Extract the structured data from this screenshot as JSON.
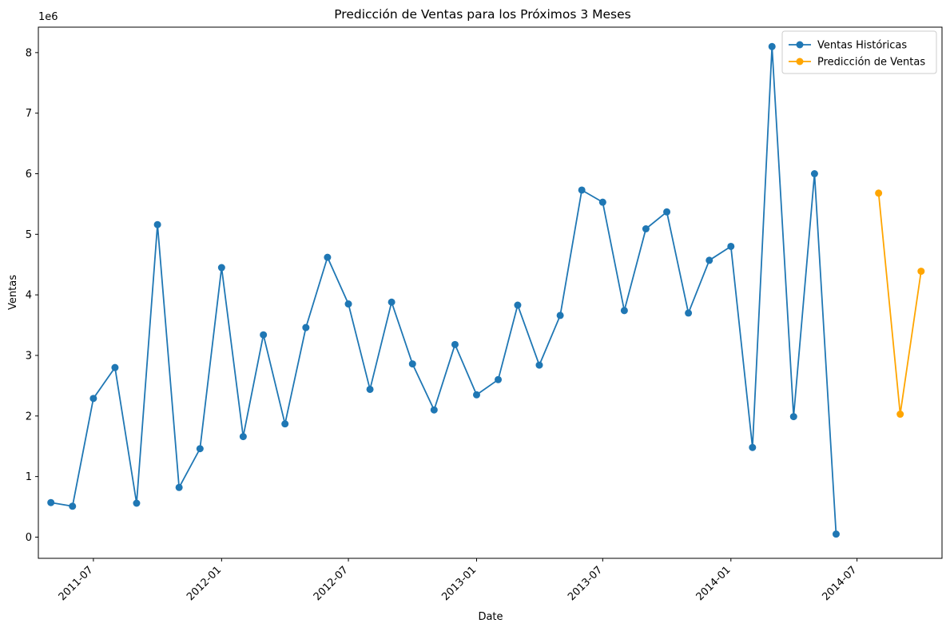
{
  "chart_data": {
    "type": "line",
    "title": "Predicción de Ventas para los Próximos 3 Meses",
    "xlabel": "Date",
    "ylabel": "Ventas",
    "y_scale_label": "1e6",
    "ylim": [
      -0.35,
      8.42
    ],
    "xlim": [
      "2011-04-13",
      "2014-10-31"
    ],
    "grid": false,
    "legend_position": "top-right",
    "x_ticks": [
      {
        "date": "2011-07-01",
        "label": "2011-07"
      },
      {
        "date": "2012-01-01",
        "label": "2012-01"
      },
      {
        "date": "2012-07-01",
        "label": "2012-07"
      },
      {
        "date": "2013-01-01",
        "label": "2013-01"
      },
      {
        "date": "2013-07-01",
        "label": "2013-07"
      },
      {
        "date": "2014-01-01",
        "label": "2014-01"
      },
      {
        "date": "2014-07-01",
        "label": "2014-07"
      }
    ],
    "y_ticks": [
      0,
      1,
      2,
      3,
      4,
      5,
      6,
      7,
      8
    ],
    "series": [
      {
        "name": "Ventas Históricas",
        "color": "#1f77b4",
        "x": [
          "2011-05-01",
          "2011-06-01",
          "2011-07-01",
          "2011-08-01",
          "2011-09-01",
          "2011-10-01",
          "2011-11-01",
          "2011-12-01",
          "2012-01-01",
          "2012-02-01",
          "2012-03-01",
          "2012-04-01",
          "2012-05-01",
          "2012-06-01",
          "2012-07-01",
          "2012-08-01",
          "2012-09-01",
          "2012-10-01",
          "2012-11-01",
          "2012-12-01",
          "2013-01-01",
          "2013-02-01",
          "2013-03-01",
          "2013-04-01",
          "2013-05-01",
          "2013-06-01",
          "2013-07-01",
          "2013-08-01",
          "2013-09-01",
          "2013-10-01",
          "2013-11-01",
          "2013-12-01",
          "2014-01-01",
          "2014-02-01",
          "2014-03-01",
          "2014-04-01",
          "2014-05-01",
          "2014-06-01"
        ],
        "values": [
          0.57,
          0.51,
          2.29,
          2.8,
          0.56,
          5.16,
          0.82,
          1.46,
          4.45,
          1.66,
          3.34,
          1.87,
          3.46,
          4.62,
          3.85,
          2.44,
          3.88,
          2.86,
          2.1,
          3.18,
          2.35,
          2.6,
          3.83,
          2.84,
          3.66,
          5.73,
          5.53,
          3.74,
          5.09,
          5.37,
          3.7,
          4.57,
          4.8,
          1.48,
          8.1,
          1.99,
          6.0,
          0.05
        ]
      },
      {
        "name": "Predicción de Ventas",
        "color": "#ffa500",
        "x": [
          "2014-08-01",
          "2014-09-01",
          "2014-10-01"
        ],
        "values": [
          5.68,
          2.03,
          4.39
        ]
      }
    ]
  }
}
